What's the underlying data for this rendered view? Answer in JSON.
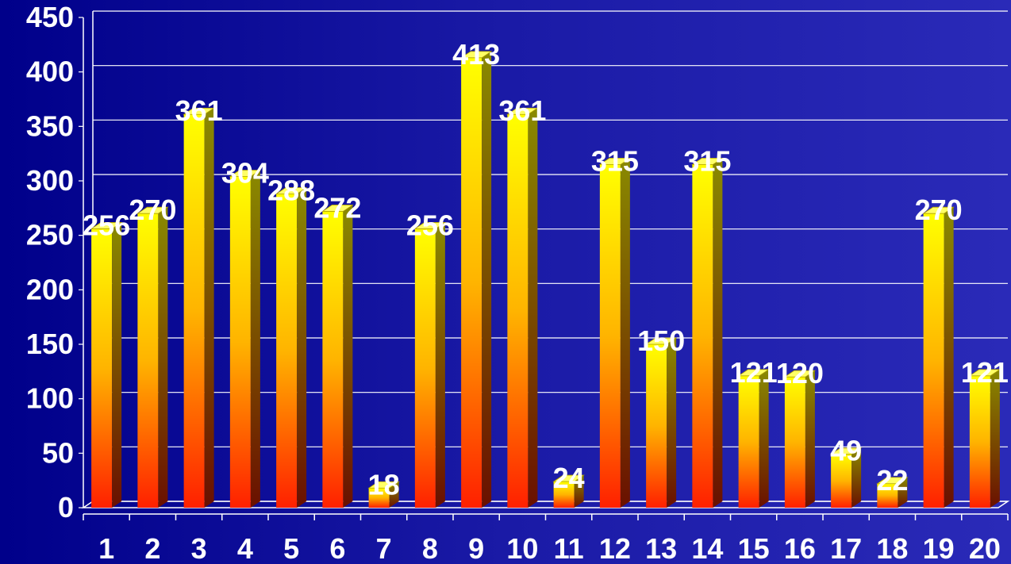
{
  "chart_data": {
    "type": "bar",
    "categories": [
      "1",
      "2",
      "3",
      "4",
      "5",
      "6",
      "7",
      "8",
      "9",
      "10",
      "11",
      "12",
      "13",
      "14",
      "15",
      "16",
      "17",
      "18",
      "19",
      "20"
    ],
    "values": [
      256,
      270,
      361,
      304,
      288,
      272,
      18,
      256,
      413,
      361,
      24,
      315,
      150,
      315,
      121,
      120,
      49,
      22,
      270,
      121
    ],
    "y_ticks": [
      "0",
      "50",
      "100",
      "150",
      "200",
      "250",
      "300",
      "350",
      "400",
      "450"
    ],
    "ylim": [
      0,
      450
    ],
    "grid": true,
    "colors": {
      "background": "#00008a",
      "bar_top": "#ffff00",
      "bar_bottom": "#ff2000",
      "gridline": "#ffffff",
      "text": "#ffffff"
    }
  }
}
